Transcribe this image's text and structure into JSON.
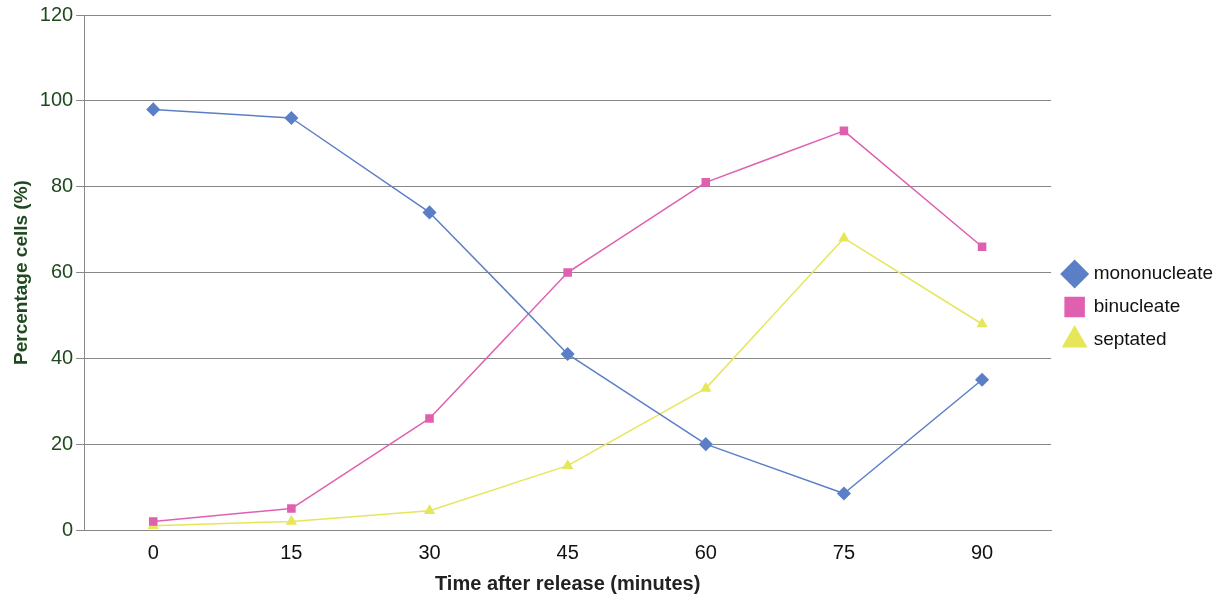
{
  "chart_data": {
    "type": "line",
    "xlabel": "Time after release (minutes)",
    "ylabel": "Percentage cells (%)",
    "categories": [
      "0",
      "15",
      "30",
      "45",
      "60",
      "75",
      "90"
    ],
    "series": [
      {
        "name": "mononucleate",
        "color": "#5b7fc6",
        "marker": "diamond",
        "values": [
          98,
          96,
          74,
          41,
          20,
          8.5,
          35
        ]
      },
      {
        "name": "binucleate",
        "color": "#e060b0",
        "marker": "square",
        "values": [
          2,
          5,
          26,
          60,
          81,
          93,
          66
        ]
      },
      {
        "name": "septated",
        "color": "#e6e65a",
        "marker": "triangle",
        "values": [
          1,
          2,
          4.5,
          15,
          33,
          68,
          48
        ]
      }
    ],
    "ylim": [
      0,
      120
    ],
    "yticks": [
      0,
      20,
      40,
      60,
      80,
      100,
      120
    ],
    "grid": "y",
    "legend": "right",
    "line_style": "solid"
  }
}
